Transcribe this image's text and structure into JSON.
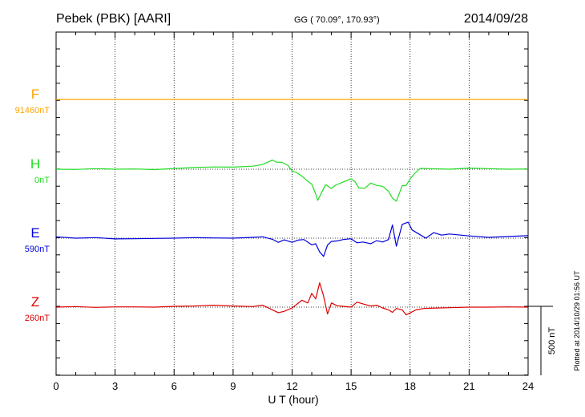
{
  "header": {
    "station": "Pebek (PBK)  [AARI]",
    "coords": "GG ( 70.09°, 170.93°)",
    "date": "2014/09/28"
  },
  "side_note": "Plotted at 2014/10/29 01:56 UT",
  "scale_label": "500 nT",
  "chart_data": {
    "type": "line",
    "xlabel": "U T (hour)",
    "xlim": [
      0,
      24
    ],
    "xticks": [
      "0",
      "3",
      "6",
      "9",
      "12",
      "15",
      "18",
      "21",
      "24"
    ],
    "scale_bar_nT": 500,
    "series": [
      {
        "name": "F",
        "baseline_label": "91460nT",
        "color": "#ffa500",
        "points": [
          [
            0,
            0
          ],
          [
            24,
            0
          ]
        ]
      },
      {
        "name": "H",
        "baseline_label": "0nT",
        "color": "#22dd22",
        "points": [
          [
            0,
            0
          ],
          [
            1,
            -2
          ],
          [
            2,
            4
          ],
          [
            3,
            0
          ],
          [
            4,
            2
          ],
          [
            5,
            -3
          ],
          [
            6,
            5
          ],
          [
            7,
            12
          ],
          [
            8,
            16
          ],
          [
            9,
            15
          ],
          [
            10,
            22
          ],
          [
            10.5,
            34
          ],
          [
            11,
            66
          ],
          [
            11.2,
            52
          ],
          [
            11.5,
            50
          ],
          [
            11.8,
            26
          ],
          [
            12,
            -14
          ],
          [
            12.2,
            -22
          ],
          [
            12.5,
            -50
          ],
          [
            12.8,
            -88
          ],
          [
            13,
            -108
          ],
          [
            13.2,
            -178
          ],
          [
            13.3,
            -226
          ],
          [
            13.5,
            -170
          ],
          [
            13.7,
            -112
          ],
          [
            14,
            -140
          ],
          [
            14.2,
            -116
          ],
          [
            14.5,
            -98
          ],
          [
            14.8,
            -80
          ],
          [
            15,
            -70
          ],
          [
            15.2,
            -90
          ],
          [
            15.4,
            -136
          ],
          [
            15.7,
            -138
          ],
          [
            16,
            -100
          ],
          [
            16.3,
            -118
          ],
          [
            16.6,
            -124
          ],
          [
            16.9,
            -160
          ],
          [
            17.1,
            -210
          ],
          [
            17.3,
            -232
          ],
          [
            17.6,
            -120
          ],
          [
            17.8,
            -118
          ],
          [
            18,
            -70
          ],
          [
            18.2,
            -36
          ],
          [
            18.5,
            6
          ],
          [
            19,
            4
          ],
          [
            20,
            0
          ],
          [
            21,
            8
          ],
          [
            22,
            4
          ],
          [
            23,
            0
          ],
          [
            24,
            2
          ]
        ]
      },
      {
        "name": "E",
        "baseline_label": "590nT",
        "color": "#0000dd",
        "points": [
          [
            0,
            10
          ],
          [
            1,
            0
          ],
          [
            2,
            4
          ],
          [
            3,
            -5
          ],
          [
            4,
            -4
          ],
          [
            5,
            -2
          ],
          [
            6,
            0
          ],
          [
            7,
            4
          ],
          [
            8,
            2
          ],
          [
            9,
            0
          ],
          [
            10,
            6
          ],
          [
            10.5,
            10
          ],
          [
            11,
            -8
          ],
          [
            11.3,
            -30
          ],
          [
            11.6,
            -12
          ],
          [
            12,
            -30
          ],
          [
            12.3,
            -14
          ],
          [
            12.6,
            -10
          ],
          [
            13,
            -48
          ],
          [
            13.2,
            -40
          ],
          [
            13.4,
            -100
          ],
          [
            13.6,
            -132
          ],
          [
            13.8,
            -50
          ],
          [
            14,
            -24
          ],
          [
            14.3,
            -20
          ],
          [
            14.6,
            -10
          ],
          [
            15,
            -4
          ],
          [
            15.3,
            -34
          ],
          [
            15.6,
            -28
          ],
          [
            16,
            -40
          ],
          [
            16.3,
            -18
          ],
          [
            16.6,
            -28
          ],
          [
            16.9,
            -10
          ],
          [
            17.1,
            96
          ],
          [
            17.3,
            -58
          ],
          [
            17.6,
            100
          ],
          [
            17.9,
            116
          ],
          [
            18.1,
            60
          ],
          [
            18.4,
            34
          ],
          [
            18.8,
            0
          ],
          [
            19.2,
            40
          ],
          [
            19.6,
            22
          ],
          [
            20,
            30
          ],
          [
            21,
            16
          ],
          [
            22,
            6
          ],
          [
            23,
            12
          ],
          [
            24,
            18
          ]
        ]
      },
      {
        "name": "Z",
        "baseline_label": "260nT",
        "color": "#dd0000",
        "points": [
          [
            0,
            0
          ],
          [
            1,
            4
          ],
          [
            2,
            -2
          ],
          [
            3,
            2
          ],
          [
            4,
            2
          ],
          [
            5,
            0
          ],
          [
            6,
            6
          ],
          [
            7,
            8
          ],
          [
            8,
            14
          ],
          [
            9,
            8
          ],
          [
            10,
            4
          ],
          [
            10.5,
            14
          ],
          [
            11,
            -20
          ],
          [
            11.3,
            -40
          ],
          [
            11.6,
            -30
          ],
          [
            12,
            -6
          ],
          [
            12.5,
            50
          ],
          [
            12.8,
            30
          ],
          [
            13,
            100
          ],
          [
            13.2,
            60
          ],
          [
            13.4,
            176
          ],
          [
            13.6,
            80
          ],
          [
            13.8,
            -50
          ],
          [
            14,
            30
          ],
          [
            14.3,
            10
          ],
          [
            14.6,
            6
          ],
          [
            15,
            0
          ],
          [
            15.3,
            36
          ],
          [
            15.6,
            24
          ],
          [
            16,
            8
          ],
          [
            16.3,
            14
          ],
          [
            16.6,
            -6
          ],
          [
            16.9,
            -20
          ],
          [
            17.1,
            -38
          ],
          [
            17.3,
            -10
          ],
          [
            17.6,
            -20
          ],
          [
            17.8,
            -56
          ],
          [
            18,
            -42
          ],
          [
            18.3,
            -20
          ],
          [
            18.7,
            -10
          ],
          [
            19,
            -8
          ],
          [
            20,
            -4
          ],
          [
            21,
            0
          ],
          [
            22,
            0
          ],
          [
            23,
            2
          ],
          [
            24,
            0
          ]
        ]
      }
    ]
  }
}
